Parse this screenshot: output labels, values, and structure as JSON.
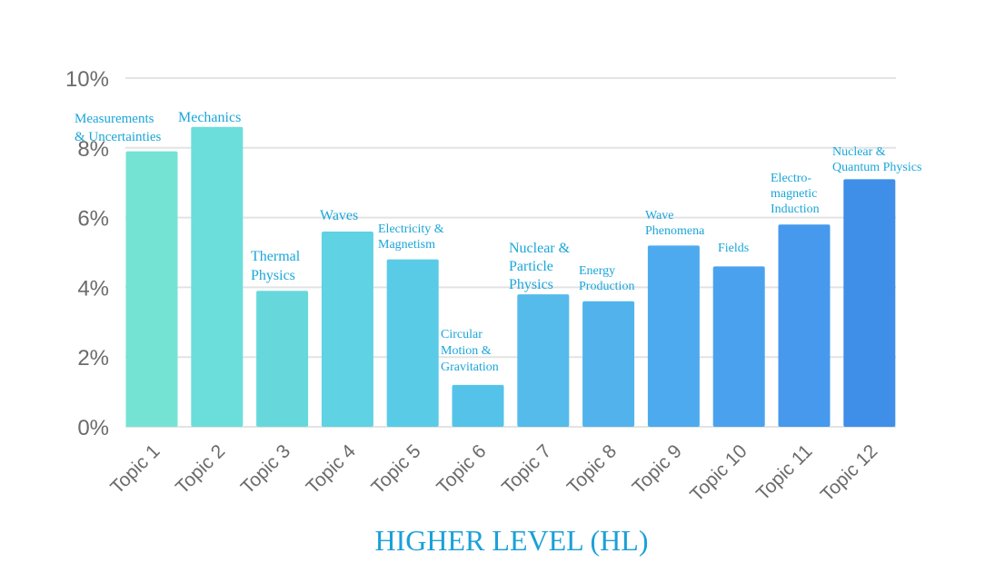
{
  "chart_data": {
    "type": "bar",
    "title": "HIGHER LEVEL (HL)",
    "xlabel": "",
    "ylabel": "",
    "ylim": [
      0,
      10
    ],
    "yticks": [
      "0%",
      "2%",
      "4%",
      "6%",
      "8%",
      "10%"
    ],
    "grid": true,
    "categories": [
      "Topic 1",
      "Topic 2",
      "Topic 3",
      "Topic 4",
      "Topic 5",
      "Topic 6",
      "Topic 7",
      "Topic 8",
      "Topic 9",
      "Topic 10",
      "Topic 11",
      "Topic 12"
    ],
    "values": [
      7.9,
      8.6,
      3.9,
      5.6,
      4.8,
      1.2,
      3.8,
      3.6,
      5.2,
      4.6,
      5.8,
      7.1
    ],
    "annotations": [
      "Measurements & Uncertainties",
      "Mechanics",
      "Thermal Physics",
      "Waves",
      "Electricity & Magnetism",
      "Circular Motion & Gravitation",
      "Nuclear & Particle Physics",
      "Energy Production",
      "Wave Phenomena",
      "Fields",
      "Electro-magnetic Induction",
      "Nuclear & Quantum Physics"
    ],
    "colors": [
      "#74e3d4",
      "#6bdedb",
      "#66d8dc",
      "#5fd2e3",
      "#59cbe6",
      "#55c3e9",
      "#54bbeb",
      "#52b3ec",
      "#4eaaee",
      "#4aa2ee",
      "#4699ec",
      "#3f8ee8"
    ]
  }
}
